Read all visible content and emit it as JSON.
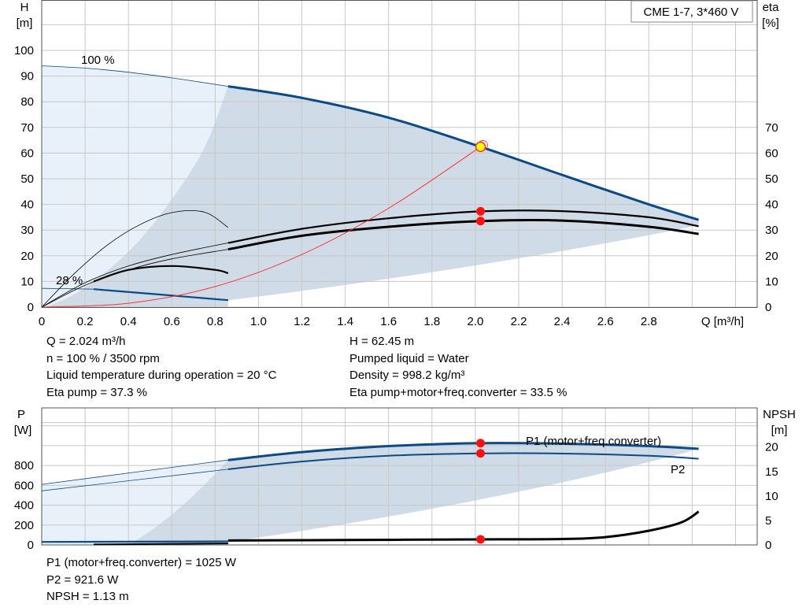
{
  "model_label": "CME 1-7, 3*460 V",
  "colors": {
    "curve_blue": "#0b4a86",
    "area_dark": "#cfdbe6",
    "area_light": "#e8f1f9",
    "grid": "#c8c8c8",
    "system_curve": "#ff3030",
    "operating_point": "#ff1010",
    "highlight_point": "#ffff00"
  },
  "chart_data": [
    {
      "type": "line",
      "id": "head",
      "y_axis_label": "H",
      "y_axis_unit": "[m]",
      "y2_axis_label": "eta",
      "y2_axis_unit": "[%]",
      "x_axis_label": "Q [m³/h]",
      "xlim": [
        0,
        3.3
      ],
      "ylim": [
        0,
        100
      ],
      "grid": true,
      "x_ticks": [
        "0",
        "0.2",
        "0.4",
        "0.6",
        "0.8",
        "1.0",
        "1.2",
        "1.4",
        "1.6",
        "1.8",
        "2.0",
        "2.2",
        "2.4",
        "2.6",
        "2.8"
      ],
      "y_ticks": [
        "0",
        "10",
        "20",
        "30",
        "40",
        "50",
        "60",
        "70",
        "80",
        "90",
        "100"
      ],
      "y2_ticks": [
        "0",
        "10",
        "20",
        "30",
        "40",
        "50",
        "60",
        "70"
      ],
      "speed_labels": [
        "100 %",
        "28 %"
      ],
      "series": [
        {
          "key": "h100_ext",
          "x": [
            0,
            0.2,
            0.4,
            0.6,
            0.86
          ],
          "y": [
            94,
            93.1,
            91.5,
            89.3,
            86
          ]
        },
        {
          "key": "h100",
          "x": [
            0.86,
            1.2,
            1.6,
            2.024,
            2.4,
            2.8,
            3.03
          ],
          "y": [
            86,
            81.5,
            73.8,
            62.45,
            51.5,
            40,
            34
          ]
        },
        {
          "key": "h28_ext",
          "x": [
            0,
            0.1,
            0.24
          ],
          "y": [
            7.3,
            7.2,
            7
          ]
        },
        {
          "key": "h28",
          "x": [
            0.24,
            0.5,
            0.86
          ],
          "y": [
            7,
            5.2,
            2.7
          ]
        },
        {
          "key": "eta_pump_ext",
          "x": [
            0,
            0.2,
            0.4,
            0.6,
            0.86
          ],
          "y": [
            0,
            9.5,
            16,
            20.5,
            25
          ]
        },
        {
          "key": "eta_pump",
          "x": [
            0.86,
            1.2,
            1.6,
            2.024,
            2.4,
            2.8,
            3.03
          ],
          "y": [
            25,
            30.5,
            34.6,
            37.3,
            37.4,
            35,
            31.5
          ]
        },
        {
          "key": "eta_total_ext",
          "x": [
            0,
            0.2,
            0.4,
            0.6,
            0.86
          ],
          "y": [
            0,
            8.5,
            14.5,
            18.8,
            22.5
          ]
        },
        {
          "key": "eta_total",
          "x": [
            0.86,
            1.2,
            1.6,
            2.024,
            2.4,
            2.8,
            3.03
          ],
          "y": [
            22.5,
            27.8,
            31.3,
            33.5,
            33.7,
            31.3,
            28.5
          ]
        },
        {
          "key": "eta28_thin",
          "x": [
            0,
            0.15,
            0.3,
            0.45,
            0.6,
            0.75,
            0.86
          ],
          "y": [
            0,
            13,
            24,
            32,
            36.8,
            37,
            31
          ]
        },
        {
          "key": "eta28_pump",
          "x": [
            0.24,
            0.4,
            0.6,
            0.8,
            0.86
          ],
          "y": [
            10,
            14.5,
            16,
            14.5,
            13.2
          ]
        },
        {
          "key": "system_curve",
          "x": [
            0,
            0.4,
            0.8,
            1.2,
            1.6,
            2.024
          ],
          "y": [
            0,
            1.5,
            8,
            20.5,
            38.5,
            62.45
          ]
        }
      ],
      "operating_points": [
        {
          "x": 2.024,
          "y": 62.45,
          "style": "highlight"
        },
        {
          "x": 2.024,
          "y": 37.3,
          "style": "point"
        },
        {
          "x": 2.024,
          "y": 33.5,
          "style": "point"
        }
      ]
    },
    {
      "type": "line",
      "id": "power",
      "y_axis_label": "P",
      "y_axis_unit": "[W]",
      "y2_axis_label": "NPSH",
      "y2_axis_unit": "[m]",
      "xlim": [
        0,
        3.3
      ],
      "ylim": [
        0,
        1380
      ],
      "y2lim": [
        0,
        28
      ],
      "grid": true,
      "y_ticks": [
        "0",
        "200",
        "400",
        "600",
        "800"
      ],
      "y2_ticks": [
        "0",
        "5",
        "10",
        "15",
        "20"
      ],
      "series_labels": [
        "P1 (motor+freq.converter)",
        "P2"
      ],
      "series": [
        {
          "key": "p1_ext",
          "x": [
            0,
            0.86
          ],
          "y": [
            610,
            855
          ]
        },
        {
          "key": "p1",
          "x": [
            0.86,
            1.2,
            1.6,
            2.024,
            2.4,
            2.8,
            3.03
          ],
          "y": [
            855,
            935,
            995,
            1025,
            1020,
            995,
            968
          ]
        },
        {
          "key": "p2_ext",
          "x": [
            0,
            0.86
          ],
          "y": [
            545,
            762
          ]
        },
        {
          "key": "p2",
          "x": [
            0.86,
            1.2,
            1.6,
            2.024,
            2.4,
            2.8,
            3.03
          ],
          "y": [
            762,
            840,
            898,
            921.6,
            920,
            898,
            868
          ]
        },
        {
          "key": "p28",
          "x": [
            0,
            0.86
          ],
          "y": [
            30,
            36
          ]
        },
        {
          "key": "npsh_low",
          "x": [
            0.24,
            0.86
          ],
          "y": [
            0.1,
            0.3
          ]
        },
        {
          "key": "npsh",
          "x": [
            0.86,
            1.4,
            2.024,
            2.4,
            2.6,
            2.8,
            2.95,
            3.03
          ],
          "y": [
            0.9,
            1,
            1.13,
            1.2,
            1.6,
            2.9,
            4.6,
            6.8
          ]
        }
      ],
      "operating_points": [
        {
          "x": 2.024,
          "y": 1025,
          "axis": "left"
        },
        {
          "x": 2.024,
          "y": 921.6,
          "axis": "left"
        },
        {
          "x": 2.024,
          "y": 1.13,
          "axis": "right"
        }
      ]
    }
  ],
  "info_left": [
    "Q = 2.024 m³/h",
    "n = 100 % / 3500 rpm",
    "Liquid temperature during operation = 20 °C",
    "Eta pump = 37.3 %"
  ],
  "info_right": [
    "H = 62.45 m",
    "Pumped liquid = Water",
    "Density = 998.2 kg/m³",
    "Eta pump+motor+freq.converter = 33.5 %"
  ],
  "info_bottom": [
    "P1 (motor+freq.converter) = 1025 W",
    "P2 = 921.6 W",
    "NPSH = 1.13 m"
  ]
}
